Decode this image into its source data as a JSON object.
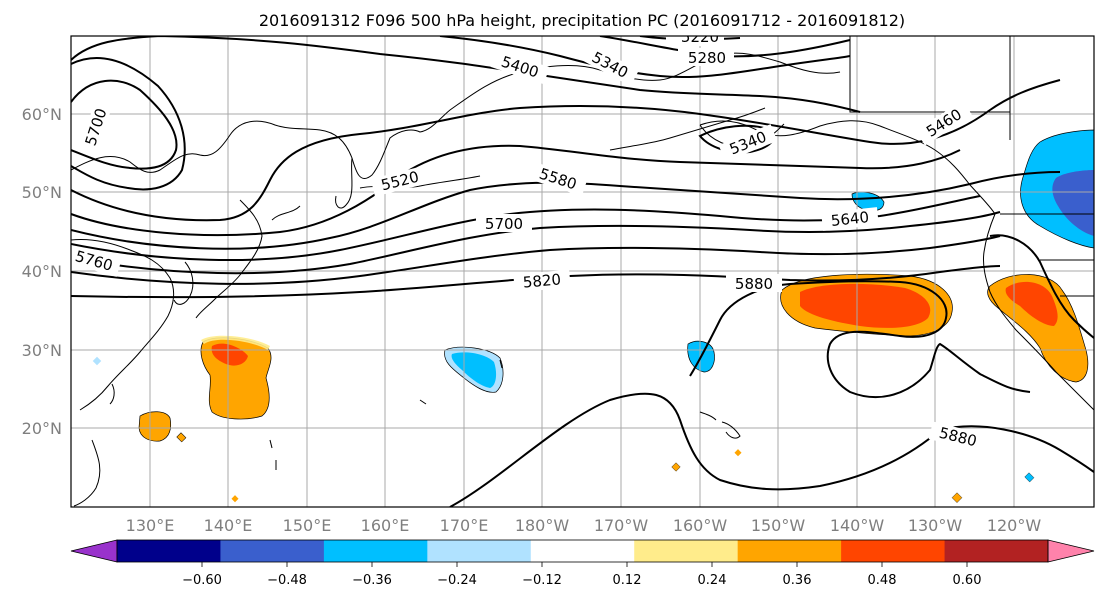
{
  "title": "2016091312 F096 500 hPa height, precipitation PC (2016091712 - 2016091812)",
  "lat_labels": [
    "60°N",
    "50°N",
    "40°N",
    "30°N",
    "20°N"
  ],
  "lon_labels": [
    "130°E",
    "140°E",
    "150°E",
    "160°E",
    "170°E",
    "180°W",
    "170°W",
    "160°W",
    "150°W",
    "140°W",
    "130°W",
    "120°W"
  ],
  "colorbar": {
    "colors": [
      "#9932cc",
      "#00008b",
      "#3a5fcd",
      "#00bfff",
      "#b0e2ff",
      "#ffffff",
      "#ffec8b",
      "#ffa500",
      "#ff4500",
      "#b22222",
      "#ff82ab"
    ],
    "tick_labels": [
      "−0.60",
      "−0.48",
      "−0.36",
      "−0.24",
      "−0.12",
      "0.12",
      "0.24",
      "0.36",
      "0.48",
      "0.60"
    ]
  },
  "contour_labels": [
    "5220",
    "5280",
    "5340",
    "5400",
    "5460",
    "5340",
    "5520",
    "5580",
    "5700",
    "5640",
    "5760",
    "5820",
    "5880",
    "5880",
    "5700"
  ]
}
